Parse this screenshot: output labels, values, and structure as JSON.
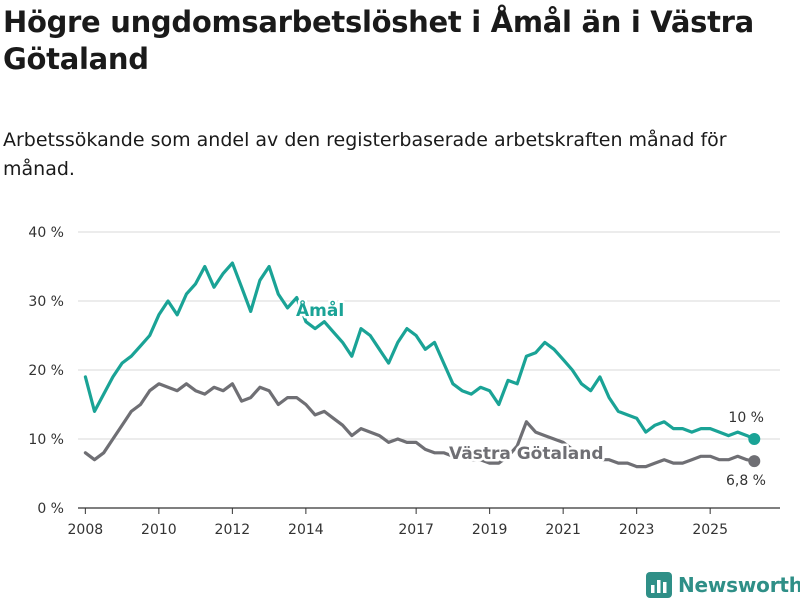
{
  "title": "Högre ungdomsarbetslöshet i Åmål än i Västra Götaland",
  "subtitle": "Arbetssökande som andel av den registerbaserade arbetskraften månad för månad.",
  "brand": "Newsworthy",
  "colors": {
    "amal": "#1aa396",
    "vg": "#6f6f74",
    "grid": "#d9d9d9",
    "axis": "#333333",
    "brand": "#2f8f87"
  },
  "chart_data": {
    "type": "line",
    "title": "Högre ungdomsarbetslöshet i Åmål än i Västra Götaland",
    "xlabel": "",
    "ylabel": "",
    "xlim": [
      2007.8,
      2026.9
    ],
    "ylim": [
      0,
      40
    ],
    "y_ticks": [
      0,
      10,
      20,
      30,
      40
    ],
    "y_tick_labels": [
      "0 %",
      "10 %",
      "20 %",
      "30 %",
      "40 %"
    ],
    "x_ticks": [
      2008,
      2010,
      2012,
      2014,
      2017,
      2019,
      2021,
      2023,
      2025
    ],
    "x_tick_labels": [
      "2008",
      "2010",
      "2012",
      "2014",
      "2017",
      "2019",
      "2021",
      "2023",
      "2025"
    ],
    "grid": true,
    "series": [
      {
        "name": "Åmål",
        "end_label": "10 %",
        "x": [
          2008.0,
          2008.25,
          2008.5,
          2008.75,
          2009.0,
          2009.25,
          2009.5,
          2009.75,
          2010.0,
          2010.25,
          2010.5,
          2010.75,
          2011.0,
          2011.25,
          2011.5,
          2011.75,
          2012.0,
          2012.25,
          2012.5,
          2012.75,
          2013.0,
          2013.25,
          2013.5,
          2013.75,
          2014.0,
          2014.25,
          2014.5,
          2014.75,
          2015.0,
          2015.25,
          2015.5,
          2015.75,
          2016.0,
          2016.25,
          2016.5,
          2016.75,
          2017.0,
          2017.25,
          2017.5,
          2017.75,
          2018.0,
          2018.25,
          2018.5,
          2018.75,
          2019.0,
          2019.25,
          2019.5,
          2019.75,
          2020.0,
          2020.25,
          2020.5,
          2020.75,
          2021.0,
          2021.25,
          2021.5,
          2021.75,
          2022.0,
          2022.25,
          2022.5,
          2022.75,
          2023.0,
          2023.25,
          2023.5,
          2023.75,
          2024.0,
          2024.25,
          2024.5,
          2024.75,
          2025.0,
          2025.25,
          2025.5,
          2025.75,
          2026.0,
          2026.2
        ],
        "values": [
          19,
          14,
          16.5,
          19,
          21,
          22,
          23.5,
          25,
          28,
          30,
          28,
          31,
          32.5,
          35,
          32,
          34,
          35.5,
          32,
          28.5,
          33,
          35,
          31,
          29,
          30.5,
          27,
          26,
          27,
          25.5,
          24,
          22,
          26,
          25,
          23,
          21,
          24,
          26,
          25,
          23,
          24,
          21,
          18,
          17,
          16.5,
          17.5,
          17,
          15,
          18.5,
          18,
          22,
          22.5,
          24,
          23,
          21.5,
          20,
          18,
          17,
          19,
          16,
          14,
          13.5,
          13,
          11,
          12,
          12.5,
          11.5,
          11.5,
          11,
          11.5,
          11.5,
          11,
          10.5,
          11,
          10.5,
          10
        ]
      },
      {
        "name": "Västra Götaland",
        "end_label": "6,8 %",
        "x": [
          2008.0,
          2008.25,
          2008.5,
          2008.75,
          2009.0,
          2009.25,
          2009.5,
          2009.75,
          2010.0,
          2010.25,
          2010.5,
          2010.75,
          2011.0,
          2011.25,
          2011.5,
          2011.75,
          2012.0,
          2012.25,
          2012.5,
          2012.75,
          2013.0,
          2013.25,
          2013.5,
          2013.75,
          2014.0,
          2014.25,
          2014.5,
          2014.75,
          2015.0,
          2015.25,
          2015.5,
          2015.75,
          2016.0,
          2016.25,
          2016.5,
          2016.75,
          2017.0,
          2017.25,
          2017.5,
          2017.75,
          2018.0,
          2018.25,
          2018.5,
          2018.75,
          2019.0,
          2019.25,
          2019.5,
          2019.75,
          2020.0,
          2020.25,
          2020.5,
          2020.75,
          2021.0,
          2021.25,
          2021.5,
          2021.75,
          2022.0,
          2022.25,
          2022.5,
          2022.75,
          2023.0,
          2023.25,
          2023.5,
          2023.75,
          2024.0,
          2024.25,
          2024.5,
          2024.75,
          2025.0,
          2025.25,
          2025.5,
          2025.75,
          2026.0,
          2026.2
        ],
        "values": [
          8,
          7,
          8,
          10,
          12,
          14,
          15,
          17,
          18,
          17.5,
          17,
          18,
          17,
          16.5,
          17.5,
          17,
          18,
          15.5,
          16,
          17.5,
          17,
          15,
          16,
          16,
          15,
          13.5,
          14,
          13,
          12,
          10.5,
          11.5,
          11,
          10.5,
          9.5,
          10,
          9.5,
          9.5,
          8.5,
          8,
          8,
          7.5,
          7.5,
          7,
          7,
          6.5,
          6.5,
          7.5,
          9,
          12.5,
          11,
          10.5,
          10,
          9.5,
          8.5,
          8,
          7.5,
          7,
          7,
          6.5,
          6.5,
          6,
          6,
          6.5,
          7,
          6.5,
          6.5,
          7,
          7.5,
          7.5,
          7,
          7,
          7.5,
          7,
          6.8
        ]
      }
    ]
  }
}
